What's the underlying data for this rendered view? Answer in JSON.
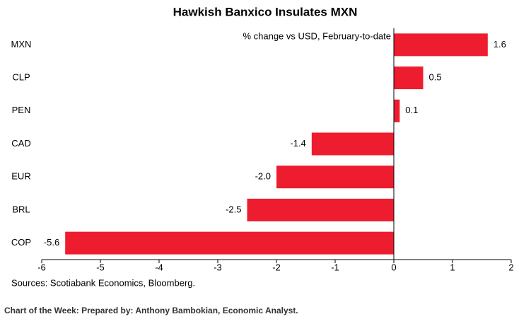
{
  "chart_data": {
    "type": "hbar",
    "title": "Hawkish Banxico Insulates MXN",
    "annotation": "% change vs USD, February-to-date",
    "source": "Sources: Scotiabank Economics, Bloomberg.",
    "footer": "Chart of the Week:  Prepared by: Anthony Bambokian, Economic Analyst.",
    "categories": [
      "MXN",
      "CLP",
      "PEN",
      "CAD",
      "EUR",
      "BRL",
      "COP"
    ],
    "values": [
      1.6,
      0.5,
      0.1,
      -1.4,
      -2.0,
      -2.5,
      -5.6
    ],
    "value_labels": [
      "1.6",
      "0.5",
      "0.1",
      "-1.4",
      "-2.0",
      "-2.5",
      "-5.6"
    ],
    "color": "#ed1c2e",
    "xlim": [
      -6,
      2
    ],
    "xticks": [
      -6,
      -5,
      -4,
      -3,
      -2,
      -1,
      0,
      1,
      2
    ],
    "grid": false
  }
}
